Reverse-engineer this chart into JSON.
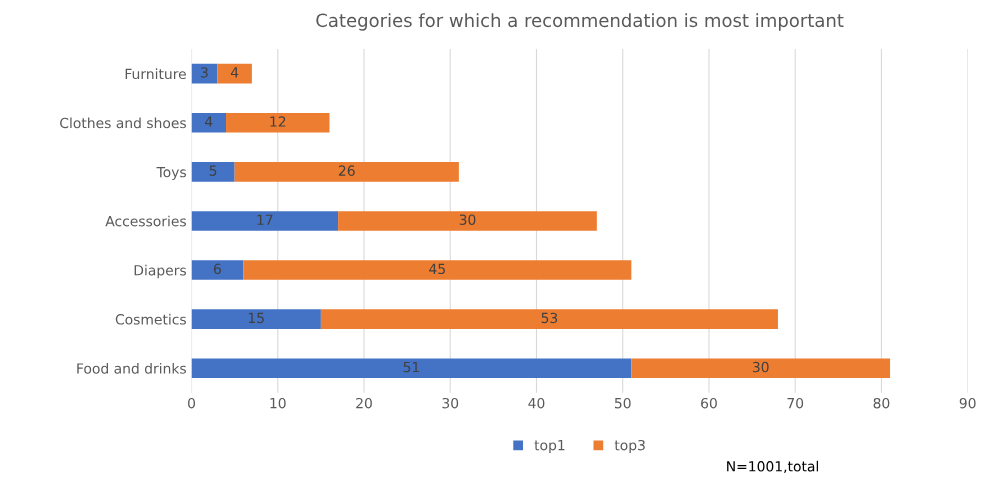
{
  "chart_data": {
    "type": "bar",
    "orientation": "horizontal",
    "stacked": true,
    "title": "Categories for which a recommendation is most important",
    "categories": [
      "Furniture",
      "Clothes and shoes",
      "Toys",
      "Accessories",
      "Diapers",
      "Cosmetics",
      "Food and drinks"
    ],
    "series": [
      {
        "name": "top1",
        "color": "#4472c4",
        "values": [
          3,
          4,
          5,
          17,
          6,
          15,
          51
        ]
      },
      {
        "name": "top3",
        "color": "#ed7d31",
        "values": [
          4,
          12,
          26,
          30,
          45,
          53,
          30
        ]
      }
    ],
    "xlim": [
      0,
      90
    ],
    "xticks": [
      0,
      10,
      20,
      30,
      40,
      50,
      60,
      70,
      80,
      90
    ],
    "grid": "x",
    "data_labels": true,
    "legend": "bottom",
    "annotations": [
      "N=1001,total"
    ]
  }
}
